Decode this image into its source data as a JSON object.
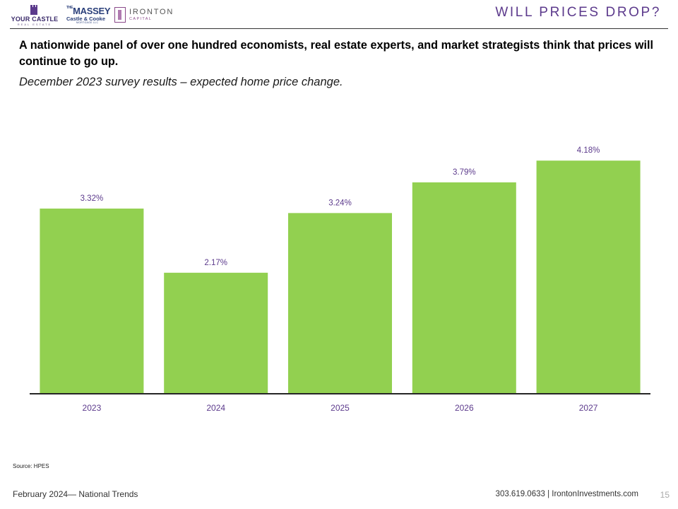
{
  "header": {
    "logos": {
      "your_castle": "YOUR CASTLE",
      "your_castle_sub": "REAL ESTATE",
      "massey_the": "THE",
      "massey": "MASSEY",
      "castle_cooke": "Castle & Cooke",
      "mortgage": "MORTGAGE LLC",
      "ironton": "IRONTON",
      "ironton_sub": "CAPITAL"
    },
    "title": "WILL PRICES DROP?"
  },
  "intro": {
    "headline": "A nationwide panel of over one hundred economists, real estate experts, and market strategists think that prices will continue to go up.",
    "subline": "December 2023 survey results – expected home price change."
  },
  "chart_data": {
    "type": "bar",
    "categories": [
      "2023",
      "2024",
      "2025",
      "2026",
      "2027"
    ],
    "values": [
      3.32,
      2.17,
      3.24,
      3.79,
      4.18
    ],
    "value_labels": [
      "3.32%",
      "2.17%",
      "3.24%",
      "3.79%",
      "4.18%"
    ],
    "title": "",
    "xlabel": "",
    "ylabel": "",
    "ylim": [
      0,
      4.3
    ],
    "grid": false,
    "bar_color": "#92d050",
    "label_color": "#5c3a8c"
  },
  "footer": {
    "source": "Source: HPES",
    "left": "February 2024— National Trends",
    "right": "303.619.0633 | IrontonInvestments.com",
    "page": "15"
  }
}
